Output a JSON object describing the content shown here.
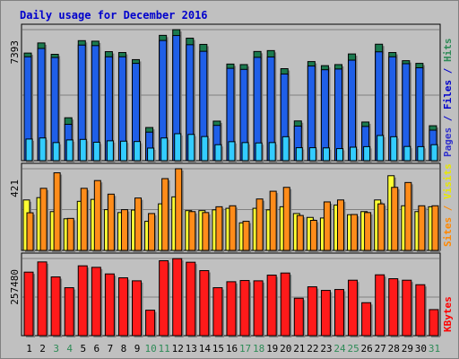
{
  "chart_data": {
    "type": "bar",
    "title": "Daily usage for December 2016",
    "categories": [
      "1",
      "2",
      "3",
      "4",
      "5",
      "6",
      "7",
      "8",
      "9",
      "10",
      "11",
      "12",
      "13",
      "14",
      "15",
      "16",
      "17",
      "18",
      "19",
      "20",
      "21",
      "22",
      "23",
      "24",
      "25",
      "26",
      "27",
      "28",
      "29",
      "30",
      "31"
    ],
    "weekend_days": [
      "3",
      "4",
      "10",
      "11",
      "17",
      "18",
      "24",
      "25",
      "31"
    ],
    "panels": [
      {
        "id": "hits",
        "ymax_label": "7393",
        "ymax": 7393,
        "right_labels": [
          {
            "text": "Pages",
            "color": "#3333cc"
          },
          {
            "text": " / ",
            "color": "#0000cc"
          },
          {
            "text": "Files",
            "color": "#0000cc"
          },
          {
            "text": " / ",
            "color": "#0000cc"
          },
          {
            "text": "Hits",
            "color": "#2e8b57"
          }
        ],
        "series": [
          {
            "name": "Hits",
            "color": "#1b7a4f",
            "values": [
              6070,
              6640,
              6000,
              2420,
              6770,
              6740,
              6150,
              6100,
              5700,
              1870,
              7070,
              7390,
              6910,
              6560,
              2230,
              5450,
              5420,
              6160,
              6210,
              5190,
              2240,
              5590,
              5360,
              5420,
              6020,
              2180,
              6570,
              6100,
              5640,
              5490,
              1970
            ]
          },
          {
            "name": "Files",
            "color": "#1f5fe8",
            "values": [
              5860,
              6330,
              5820,
              2050,
              6520,
              6490,
              5860,
              5860,
              5490,
              1610,
              6780,
              7060,
              6540,
              6170,
              1990,
              5210,
              5150,
              5830,
              5850,
              4890,
              1950,
              5340,
              5130,
              5170,
              5670,
              1930,
              6140,
              5860,
              5470,
              5240,
              1720
            ]
          },
          {
            "name": "Pages",
            "color": "#33ccff",
            "values": [
              1220,
              1280,
              1020,
              1170,
              1200,
              1040,
              1120,
              1100,
              1080,
              710,
              1280,
              1520,
              1480,
              1360,
              900,
              1070,
              1020,
              1000,
              1020,
              1350,
              730,
              730,
              720,
              680,
              760,
              790,
              1420,
              1350,
              800,
              790,
              900
            ]
          }
        ]
      },
      {
        "id": "visits",
        "ymax_label": "421",
        "ymax": 421,
        "right_labels": [
          {
            "text": "Sites",
            "color": "#ff8800"
          },
          {
            "text": " / ",
            "color": "#ff8800"
          },
          {
            "text": "Visits",
            "color": "#e8e800"
          }
        ],
        "series": [
          {
            "name": "Visits",
            "color": "#ffff33",
            "values": [
              260,
              272,
              200,
              163,
              253,
              263,
              210,
              195,
              208,
              150,
              240,
              276,
              205,
              205,
              209,
              217,
              142,
              217,
              209,
              225,
              190,
              170,
              167,
              234,
              184,
              200,
              260,
              385,
              230,
              200,
              225
            ]
          },
          {
            "name": "Sites",
            "color": "#ff8c1a",
            "values": [
              194,
              320,
              400,
              165,
              320,
              360,
              290,
              210,
              270,
              190,
              370,
              421,
              200,
              195,
              225,
              230,
              150,
              265,
              305,
              325,
              180,
              155,
              250,
              260,
              185,
              195,
              240,
              325,
              350,
              230,
              230
            ]
          }
        ]
      },
      {
        "id": "kbytes",
        "ymax_label": "257480",
        "ymax": 257480,
        "right_labels": [
          {
            "text": "KBytes",
            "color": "#ff0000"
          }
        ],
        "series": [
          {
            "name": "KBytes",
            "color": "#ff1a1a",
            "values": [
              212000,
              246000,
              196000,
              160000,
              233000,
              228000,
              206000,
              193000,
              183000,
              85000,
              250000,
              257000,
              245000,
              217000,
              160000,
              180000,
              184000,
              183000,
              202000,
              209000,
              125000,
              163000,
              151000,
              154000,
              185000,
              110000,
              203000,
              190000,
              185000,
              170000,
              87000
            ]
          }
        ]
      }
    ]
  }
}
